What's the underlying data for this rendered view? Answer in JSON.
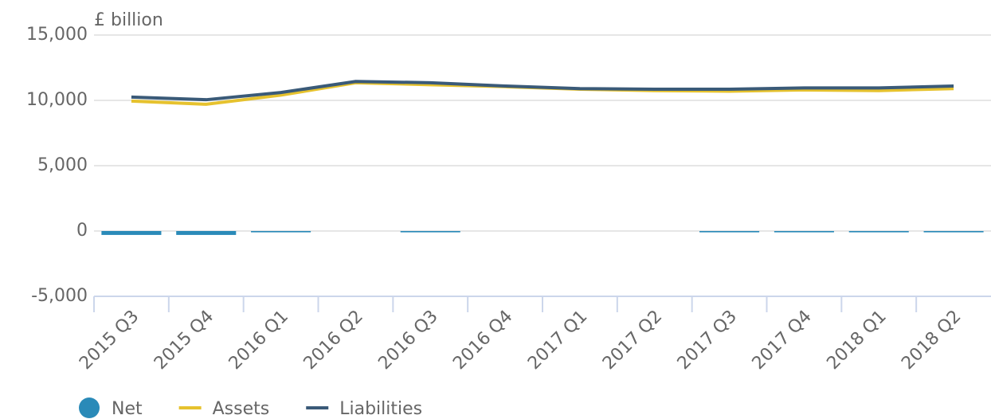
{
  "chart_data": {
    "type": "bar_line",
    "y_axis_label": "£ billion",
    "categories": [
      "2015 Q3",
      "2015 Q4",
      "2016 Q1",
      "2016 Q2",
      "2016 Q3",
      "2016 Q4",
      "2017 Q1",
      "2017 Q2",
      "2017 Q3",
      "2017 Q4",
      "2018 Q1",
      "2018 Q2"
    ],
    "series": [
      {
        "name": "Net",
        "type": "bar",
        "color": "#2a8ab8",
        "values": [
          -300,
          -300,
          -100,
          0,
          -100,
          0,
          0,
          0,
          -100,
          -100,
          -100,
          -100
        ]
      },
      {
        "name": "Assets",
        "type": "line",
        "color": "#e6c22e",
        "values": [
          9950,
          9700,
          10400,
          11350,
          11200,
          11050,
          10850,
          10750,
          10700,
          10800,
          10750,
          10900
        ]
      },
      {
        "name": "Liabilities",
        "type": "line",
        "color": "#3a5a78",
        "values": [
          10250,
          10050,
          10600,
          11450,
          11350,
          11100,
          10900,
          10850,
          10850,
          10950,
          10950,
          11100
        ]
      }
    ],
    "ylim": [
      -5000,
      15000
    ],
    "yticks": [
      {
        "value": -5000,
        "label": "-5,000"
      },
      0,
      {
        "value": 5000,
        "label": "5,000"
      },
      {
        "value": 10000,
        "label": "10,000"
      },
      {
        "value": 15000,
        "label": "15,000"
      }
    ],
    "grid": true,
    "legend": "bottom"
  }
}
